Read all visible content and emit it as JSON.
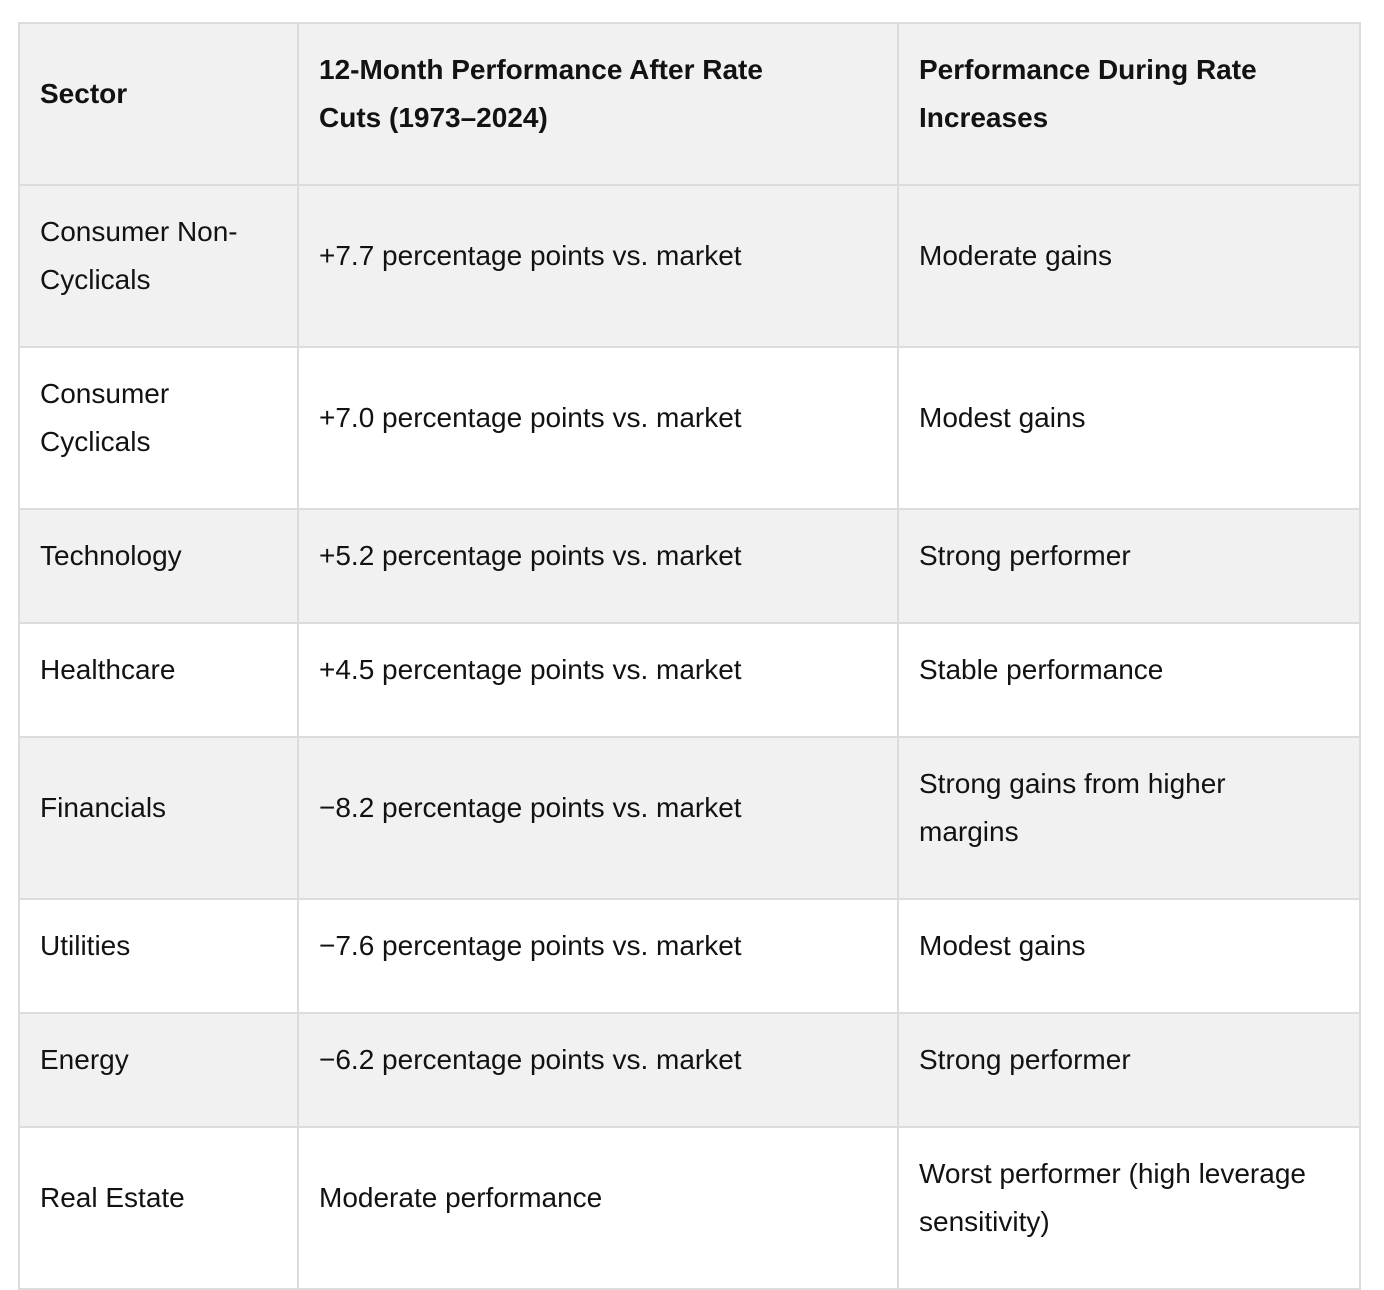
{
  "colors": {
    "stripe": "#f1f1f1",
    "border": "#dcdcdc",
    "text": "#121212"
  },
  "chart_data": {
    "type": "table",
    "columns": [
      "Sector",
      "12-Month Performance After Rate Cuts (1973–2024)",
      "Performance During Rate Increases"
    ],
    "rows": [
      [
        "Consumer Non-Cyclicals",
        "+7.7 percentage points vs. market",
        "Moderate gains"
      ],
      [
        "Consumer Cyclicals",
        "+7.0 percentage points vs. market",
        "Modest gains"
      ],
      [
        "Technology",
        "+5.2 percentage points vs. market",
        "Strong performer"
      ],
      [
        "Healthcare",
        "+4.5 percentage points vs. market",
        "Stable performance"
      ],
      [
        "Financials",
        "−8.2 percentage points vs. market",
        "Strong gains from higher margins"
      ],
      [
        "Utilities",
        "−7.6 percentage points vs. market",
        "Modest gains"
      ],
      [
        "Energy",
        "−6.2 percentage points vs. market",
        "Strong performer"
      ],
      [
        "Real Estate",
        "Moderate performance",
        "Worst performer (high leverage sensitivity)"
      ]
    ]
  }
}
